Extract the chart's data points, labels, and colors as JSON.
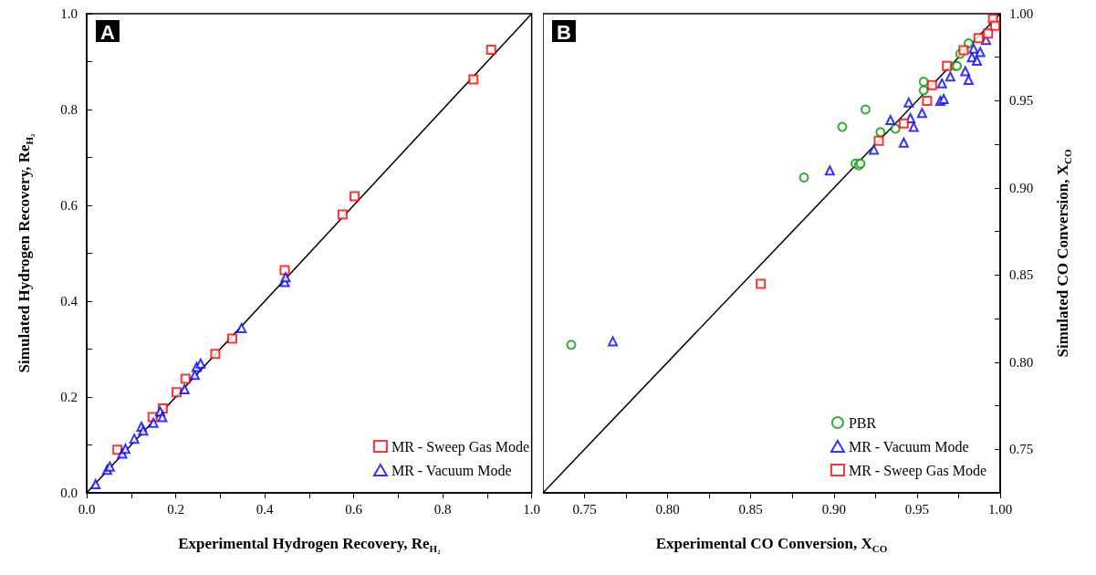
{
  "chart_data": [
    {
      "type": "scatter",
      "xlabel": "Experimental Hydrogen Recovery, Re$_{H₂}$",
      "ylabel": "Simulated Hydrogen Recovery, Re$_{H₂}$",
      "annotations": [
        "A"
      ],
      "legend": "bottom right",
      "xlim": [
        0,
        1
      ],
      "ylim": [
        0,
        1
      ],
      "xticks": [
        {
          "value": 0,
          "label": "0.0"
        },
        {
          "value": 0.1,
          "label": null
        },
        0.2,
        {
          "value": 0.3,
          "label": null
        },
        0.4,
        {
          "value": 0.5,
          "label": null
        },
        0.6,
        {
          "value": 0.7,
          "label": null
        },
        0.8,
        {
          "value": 0.9,
          "label": null
        },
        {
          "value": 1,
          "label": "1.0"
        }
      ],
      "yticks": [
        {
          "value": 0,
          "label": "0.0"
        },
        {
          "value": 0.1,
          "label": null
        },
        0.2,
        {
          "value": 0.3,
          "label": null
        },
        0.4,
        {
          "value": 0.5,
          "label": null
        },
        0.6,
        {
          "value": 0.7,
          "label": null
        },
        0.8,
        {
          "value": 0.9,
          "label": null
        },
        {
          "value": 1,
          "label": "1.0"
        }
      ],
      "series": [
        {
          "name": "MR - Sweep Gas Mode",
          "color": "#ff0000",
          "marker": "square",
          "x": [
            0.069,
            0.148,
            0.171,
            0.202,
            0.222,
            0.289,
            0.327,
            0.445,
            0.575,
            0.602,
            0.869,
            0.909
          ],
          "values": [
            0.09,
            0.158,
            0.176,
            0.21,
            0.238,
            0.29,
            0.322,
            0.465,
            0.581,
            0.619,
            0.863,
            0.925
          ]
        },
        {
          "name": "MR - Vacuum Mode",
          "color": "#0000ff",
          "marker": "triangle",
          "x": [
            0.02,
            0.046,
            0.052,
            0.08,
            0.087,
            0.107,
            0.123,
            0.127,
            0.15,
            0.165,
            0.17,
            0.22,
            0.243,
            0.247,
            0.256,
            0.348,
            0.445,
            0.447
          ],
          "values": [
            0.018,
            0.048,
            0.055,
            0.082,
            0.092,
            0.113,
            0.138,
            0.13,
            0.146,
            0.17,
            0.158,
            0.216,
            0.246,
            0.263,
            0.27,
            0.344,
            0.44,
            0.45
          ]
        },
        {
          "type": "line",
          "color": "#000000",
          "marker": "none",
          "x": [
            0,
            1
          ],
          "values": [
            0,
            1
          ]
        }
      ]
    },
    {
      "type": "scatter",
      "xlabel": "Experimental CO Conversion, X$_{CO}$",
      "ylabel": "Simulated CO Conversion, X$_{CO}$",
      "annotations": [
        "B"
      ],
      "legend": "bottom right",
      "xlim": [
        0.725,
        1
      ],
      "ylim": [
        0.725,
        1
      ],
      "xticks": [
        {
          "value": 0.75,
          "label": "0.75"
        },
        {
          "value": 0.775,
          "label": null
        },
        {
          "value": 0.8,
          "label": "0.80"
        },
        {
          "value": 0.825,
          "label": null
        },
        0.85,
        {
          "value": 0.875,
          "label": null
        },
        {
          "value": 0.9,
          "label": "0.90"
        },
        {
          "value": 0.925,
          "label": null
        },
        0.95,
        {
          "value": 0.975,
          "label": null
        },
        {
          "value": 1,
          "label": "1.00"
        }
      ],
      "yticks": [
        {
          "value": 0.75,
          "label": "0.75"
        },
        {
          "value": 0.775,
          "label": null
        },
        {
          "value": 0.8,
          "label": "0.80"
        },
        {
          "value": 0.825,
          "label": null
        },
        0.85,
        {
          "value": 0.875,
          "label": null
        },
        {
          "value": 0.9,
          "label": "0.90"
        },
        {
          "value": 0.925,
          "label": null
        },
        0.95,
        {
          "value": 0.975,
          "label": null
        },
        {
          "value": 1,
          "label": "1.00"
        }
      ],
      "series": [
        {
          "name": "PBR",
          "color": "#009900",
          "marker": "circle",
          "x": [
            0.742,
            0.882,
            0.905,
            0.919,
            0.913,
            0.915,
            0.916,
            0.928,
            0.937,
            0.954,
            0.954,
            0.973,
            0.974,
            0.976,
            0.981
          ],
          "values": [
            0.81,
            0.906,
            0.935,
            0.945,
            0.914,
            0.913,
            0.914,
            0.932,
            0.934,
            0.961,
            0.956,
            0.97,
            0.97,
            0.977,
            0.983
          ]
        },
        {
          "name": "MR - Vacuum Mode",
          "color": "#0000ff",
          "marker": "triangle",
          "x": [
            0.767,
            0.8975,
            0.924,
            0.934,
            0.942,
            0.945,
            0.946,
            0.948,
            0.953,
            0.964,
            0.966,
            0.965,
            0.97,
            0.979,
            0.981,
            0.983,
            0.984,
            0.986,
            0.988,
            0.9915
          ],
          "values": [
            0.812,
            0.91,
            0.922,
            0.939,
            0.926,
            0.949,
            0.94,
            0.935,
            0.943,
            0.95,
            0.951,
            0.96,
            0.964,
            0.967,
            0.962,
            0.975,
            0.98,
            0.973,
            0.978,
            0.985
          ]
        },
        {
          "name": "MR - Sweep Gas Mode",
          "color": "#ff0000",
          "marker": "square",
          "x": [
            0.856,
            0.927,
            0.942,
            0.956,
            0.959,
            0.968,
            0.978,
            0.987,
            0.9927,
            0.9957,
            0.997
          ],
          "values": [
            0.845,
            0.927,
            0.937,
            0.95,
            0.959,
            0.97,
            0.979,
            0.986,
            0.9886,
            0.997,
            0.993
          ]
        },
        {
          "type": "line",
          "color": "#000000",
          "marker": "none",
          "x": [
            0.725,
            1
          ],
          "values": [
            0.725,
            1
          ]
        }
      ]
    }
  ]
}
